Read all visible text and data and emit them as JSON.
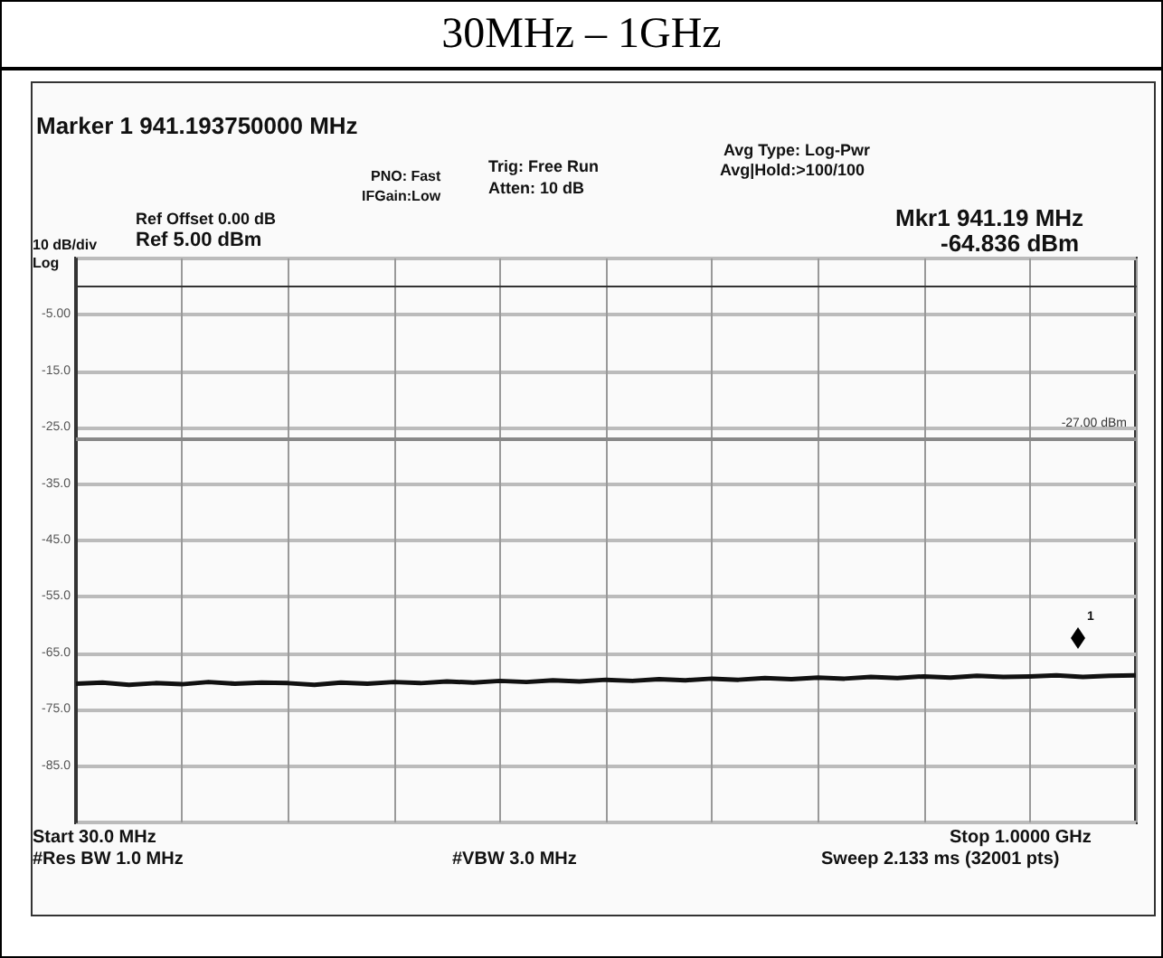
{
  "chart_data": {
    "type": "line",
    "title": "30MHz – 1GHz",
    "categories": [
      null,
      null,
      null,
      null,
      null,
      null,
      null,
      null,
      null,
      null,
      null,
      null,
      null,
      null,
      null,
      null,
      null,
      null,
      null,
      null,
      null,
      null,
      null,
      null,
      null,
      null,
      null,
      null,
      null,
      null,
      null,
      null,
      null,
      null,
      null,
      null,
      null,
      null,
      null,
      null,
      null
    ],
    "series": [
      {
        "color": "#111111",
        "values": [
          -70.4,
          -70.2,
          -70.6,
          -70.3,
          -70.5,
          -70.1,
          -70.4,
          -70.2,
          -70.3,
          -70.6,
          -70.2,
          -70.4,
          -70.1,
          -70.3,
          -70.0,
          -70.2,
          -69.9,
          -70.1,
          -69.8,
          -70.0,
          -69.7,
          -69.9,
          -69.6,
          -69.8,
          -69.5,
          -69.7,
          -69.4,
          -69.6,
          -69.3,
          -69.5,
          -69.2,
          -69.4,
          -69.1,
          -69.3,
          -69.0,
          -69.2,
          -69.1,
          -68.9,
          -69.2,
          -69.0,
          -68.9
        ]
      }
    ],
    "ylim": [
      -95,
      5
    ],
    "yticks": [
      {
        "value": -95,
        "label": null
      },
      {
        "value": -85,
        "label": "-85.0"
      },
      {
        "value": -75,
        "label": "-75.0"
      },
      {
        "value": -65,
        "label": "-65.0"
      },
      {
        "value": -55,
        "label": "-55.0"
      },
      {
        "value": -45,
        "label": "-45.0"
      },
      {
        "value": -35,
        "label": "-35.0"
      },
      {
        "value": -25,
        "label": "-25.0"
      },
      {
        "value": -15,
        "label": "-15.0"
      },
      {
        "value": -5,
        "label": "-5.00"
      },
      {
        "value": 5,
        "label": null
      }
    ],
    "tick_labels": "y",
    "grid": true,
    "marker": "none",
    "line_style": "solid",
    "ref_lines": [
      {
        "axis": "y",
        "value": -27,
        "label": "-27.00 dBm",
        "color": "#888888"
      }
    ],
    "annotations": [
      "Marker 1 941.193750000 MHz",
      "PNO: Fast",
      "IFGain:Low",
      "Trig: Free Run",
      "Atten: 10 dB",
      "Avg Type: Log-Pwr",
      "Avg|Hold:>100/100",
      "Ref Offset 0.00 dB",
      "Ref 5.00 dBm",
      "10 dB/div",
      "Log",
      "Mkr1 941.19 MHz",
      "-64.836 dBm",
      "1",
      "Start 30.0 MHz",
      "#Res BW 1.0 MHz",
      "#VBW 3.0 MHz",
      "Stop 1.0000 GHz",
      "Sweep 2.133 ms (32001 pts)"
    ]
  }
}
